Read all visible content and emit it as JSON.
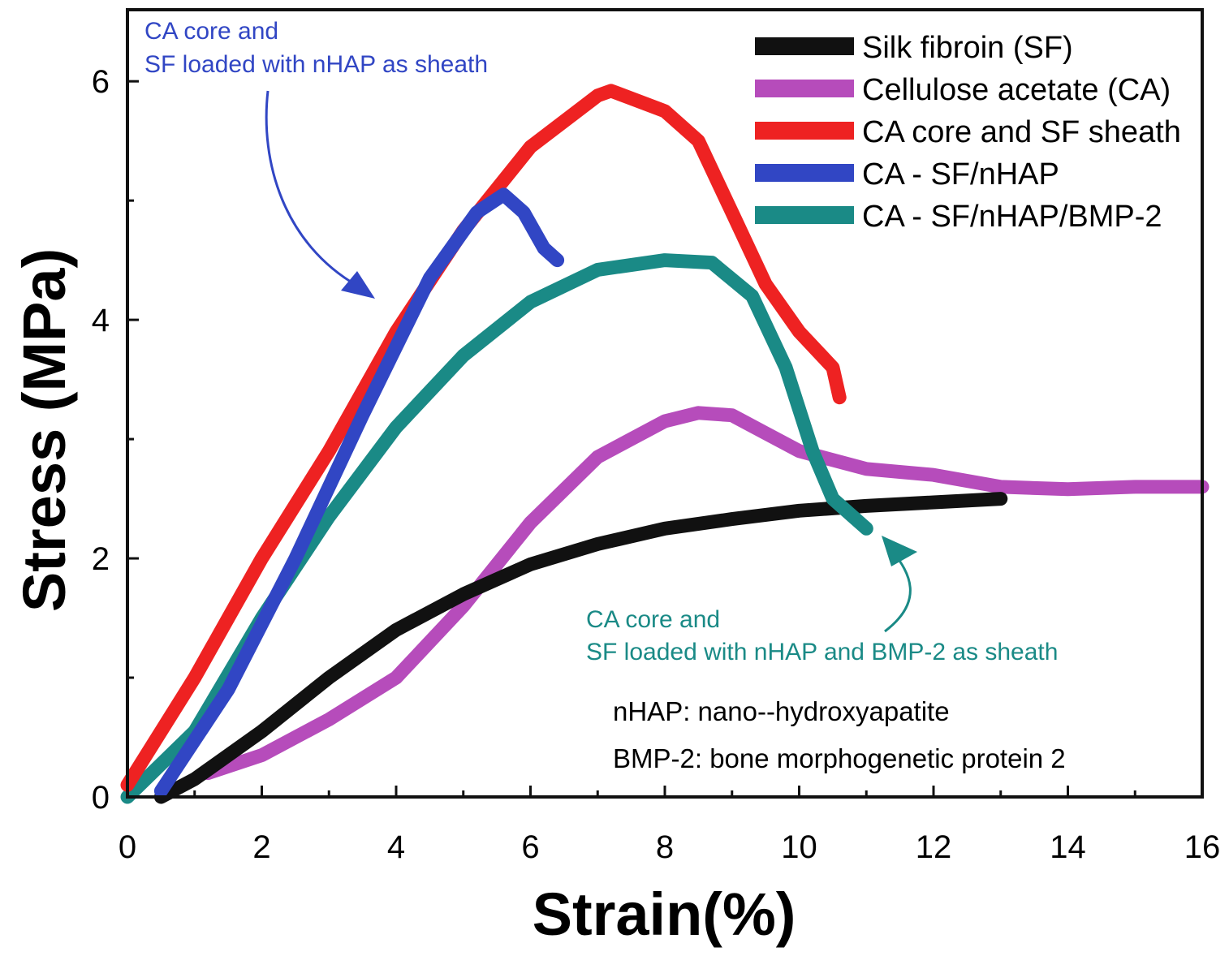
{
  "chart_data": {
    "type": "line",
    "xlabel": "Strain(%)",
    "ylabel": "Stress (MPa)",
    "xlim": [
      0,
      16
    ],
    "ylim": [
      0,
      6.6
    ],
    "x_ticks": [
      "0",
      "2",
      "4",
      "6",
      "8",
      "10",
      "12",
      "14",
      "16"
    ],
    "y_ticks": [
      "0",
      "2",
      "4",
      "6"
    ],
    "grid": false,
    "legend_position": "top-right",
    "series": [
      {
        "name": "Silk fibroin (SF)",
        "color": "#111111",
        "points": [
          [
            0.5,
            0
          ],
          [
            1,
            0.15
          ],
          [
            2,
            0.55
          ],
          [
            3,
            1.0
          ],
          [
            4,
            1.4
          ],
          [
            5,
            1.7
          ],
          [
            6,
            1.95
          ],
          [
            7,
            2.12
          ],
          [
            8,
            2.25
          ],
          [
            9,
            2.33
          ],
          [
            10,
            2.4
          ],
          [
            11,
            2.44
          ],
          [
            12,
            2.47
          ],
          [
            13,
            2.5
          ]
        ]
      },
      {
        "name": "Cellulose acetate (CA)",
        "color": "#b64cbb",
        "points": [
          [
            1.2,
            0.2
          ],
          [
            2,
            0.35
          ],
          [
            3,
            0.65
          ],
          [
            4,
            1.0
          ],
          [
            5,
            1.6
          ],
          [
            6,
            2.3
          ],
          [
            7,
            2.85
          ],
          [
            8,
            3.15
          ],
          [
            8.5,
            3.22
          ],
          [
            9,
            3.2
          ],
          [
            9.5,
            3.05
          ],
          [
            10,
            2.9
          ],
          [
            11,
            2.75
          ],
          [
            12,
            2.7
          ],
          [
            13,
            2.6
          ],
          [
            14,
            2.58
          ],
          [
            15,
            2.6
          ],
          [
            16,
            2.6
          ]
        ]
      },
      {
        "name": "CA core and SF sheath",
        "color": "#ee2222",
        "points": [
          [
            0,
            0.1
          ],
          [
            1,
            1.0
          ],
          [
            2,
            2.0
          ],
          [
            3,
            2.9
          ],
          [
            4,
            3.9
          ],
          [
            5,
            4.75
          ],
          [
            6,
            5.45
          ],
          [
            7,
            5.88
          ],
          [
            7.2,
            5.92
          ],
          [
            8,
            5.75
          ],
          [
            8.5,
            5.5
          ],
          [
            9,
            4.9
          ],
          [
            9.5,
            4.3
          ],
          [
            10,
            3.9
          ],
          [
            10.5,
            3.6
          ],
          [
            10.6,
            3.35
          ]
        ]
      },
      {
        "name": "CA - SF/nHAP",
        "color": "#3146c4",
        "points": [
          [
            0.5,
            0.05
          ],
          [
            1.5,
            0.9
          ],
          [
            2.5,
            2.0
          ],
          [
            3.5,
            3.2
          ],
          [
            4.5,
            4.35
          ],
          [
            5.2,
            4.9
          ],
          [
            5.6,
            5.05
          ],
          [
            5.9,
            4.9
          ],
          [
            6.2,
            4.6
          ],
          [
            6.4,
            4.5
          ]
        ]
      },
      {
        "name": "CA - SF/nHAP/BMP-2",
        "color": "#1a8a86",
        "points": [
          [
            0,
            0
          ],
          [
            1,
            0.55
          ],
          [
            2,
            1.5
          ],
          [
            3,
            2.35
          ],
          [
            4,
            3.1
          ],
          [
            5,
            3.7
          ],
          [
            6,
            4.15
          ],
          [
            7,
            4.42
          ],
          [
            8,
            4.5
          ],
          [
            8.7,
            4.48
          ],
          [
            9.3,
            4.2
          ],
          [
            9.8,
            3.6
          ],
          [
            10.2,
            2.9
          ],
          [
            10.5,
            2.5
          ],
          [
            10.8,
            2.35
          ],
          [
            11,
            2.25
          ]
        ]
      }
    ],
    "annotations": [
      {
        "lines": [
          "CA core and",
          "SF loaded with nHAP as sheath"
        ],
        "color": "#3146c4"
      },
      {
        "lines": [
          "CA core and",
          "SF loaded with nHAP and BMP-2 as sheath"
        ],
        "color": "#1a8a86"
      },
      {
        "lines": [
          "nHAP: nano--hydroxyapatite",
          "BMP-2: bone morphogenetic protein 2"
        ],
        "color": "#000000"
      }
    ]
  }
}
